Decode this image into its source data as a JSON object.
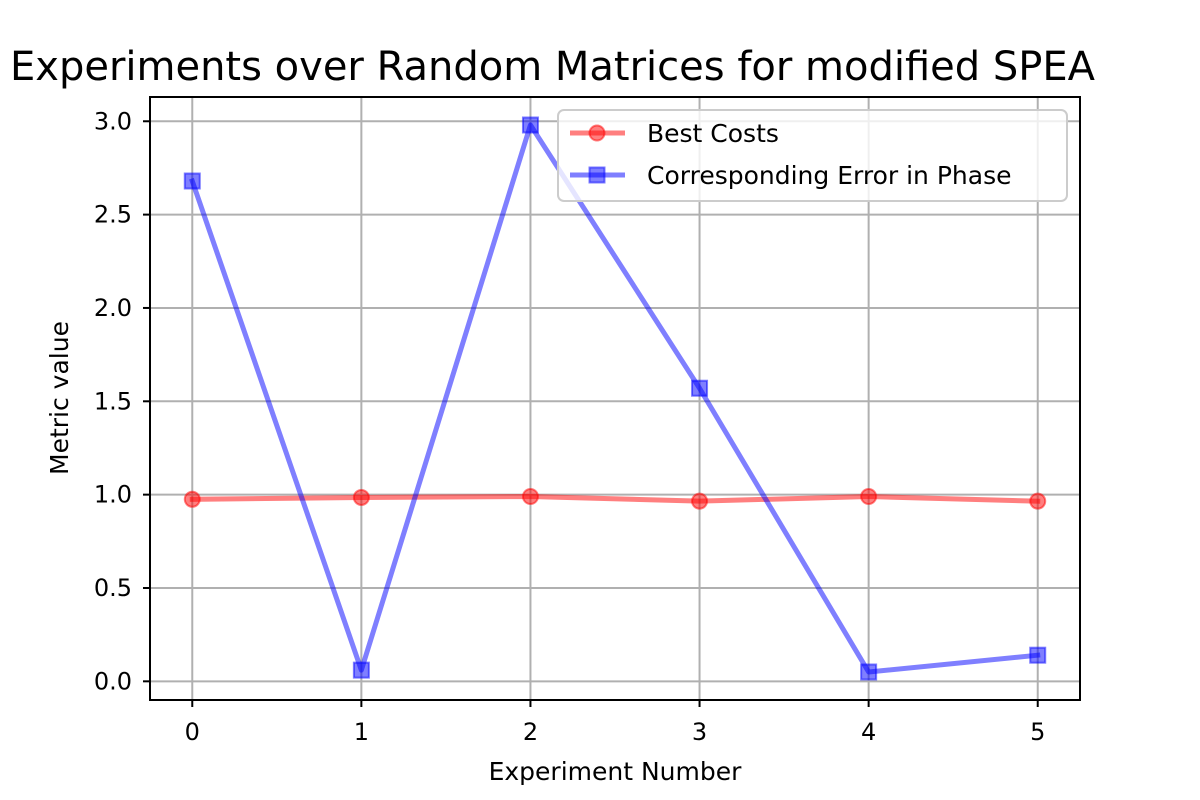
{
  "chart_data": {
    "type": "line",
    "title": "Experiments over Random Matrices for modified SPEA",
    "xlabel": "Experiment Number",
    "ylabel": "Metric value",
    "x": [
      0,
      1,
      2,
      3,
      4,
      5
    ],
    "xlim": [
      -0.25,
      5.25
    ],
    "ylim": [
      -0.1,
      3.13
    ],
    "xticks": [
      0,
      1,
      2,
      3,
      4,
      5
    ],
    "xtick_labels": [
      "0",
      "1",
      "2",
      "3",
      "4",
      "5"
    ],
    "yticks": [
      0.0,
      0.5,
      1.0,
      1.5,
      2.0,
      2.5,
      3.0
    ],
    "ytick_labels": [
      "0.0",
      "0.5",
      "1.0",
      "1.5",
      "2.0",
      "2.5",
      "3.0"
    ],
    "grid": true,
    "legend_position": "top-right",
    "series": [
      {
        "name": "Best Costs",
        "color": "#ff0000",
        "marker": "circle",
        "values": [
          0.975,
          0.985,
          0.99,
          0.965,
          0.99,
          0.965
        ]
      },
      {
        "name": "Corresponding Error in Phase",
        "color": "#0000ff",
        "marker": "square",
        "values": [
          2.68,
          0.06,
          2.98,
          1.57,
          0.05,
          0.14
        ]
      }
    ]
  }
}
